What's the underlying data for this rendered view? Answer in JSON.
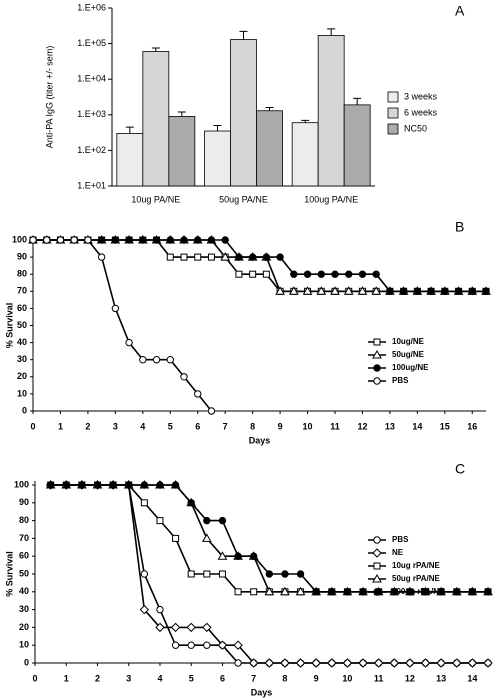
{
  "chart_data": [
    {
      "type": "bar",
      "annotation": "A",
      "y_label": "Anti-PA IgG (titer +/- sem)",
      "log_y": true,
      "categories": [
        "10ug PA/NE",
        "50ug PA/NE",
        "100ug PA/NE"
      ],
      "series": [
        {
          "name": "3 weeks",
          "color": "#ececec",
          "values": [
            300,
            350,
            600
          ],
          "errors": [
            150,
            150,
            100
          ]
        },
        {
          "name": "6 weeks",
          "color": "#d6d6d6",
          "values": [
            60000,
            130000,
            170000
          ],
          "errors": [
            15000,
            90000,
            90000
          ]
        },
        {
          "name": "NC50",
          "color": "#ababab",
          "values": [
            900,
            1300,
            1900
          ],
          "errors": [
            300,
            300,
            1000
          ]
        }
      ],
      "ylim": [
        10,
        1000000
      ],
      "yticks": [
        {
          "value": 10,
          "label": "1.E+01"
        },
        {
          "value": 100,
          "label": "1.E+02"
        },
        {
          "value": 1000,
          "label": "1.E+03"
        },
        {
          "value": 10000,
          "label": "1.E+04"
        },
        {
          "value": 100000,
          "label": "1.E+05"
        },
        {
          "value": 1000000,
          "label": "1.E+06"
        }
      ]
    },
    {
      "type": "line",
      "annotation": "B",
      "x_label": "Days",
      "y_label": "% Survival",
      "x": [
        0,
        0.5,
        1,
        1.5,
        2,
        2.5,
        3,
        3.5,
        4,
        4.5,
        5,
        5.5,
        6,
        6.5,
        7,
        7.5,
        8,
        8.5,
        9,
        9.5,
        10,
        10.5,
        11,
        11.5,
        12,
        12.5,
        13,
        13.5,
        14,
        14.5,
        15,
        15.5,
        16,
        16.5
      ],
      "series": [
        {
          "name": "10ug/NE",
          "color": "#000000",
          "marker": "square",
          "filled": false,
          "values": [
            100,
            100,
            100,
            100,
            100,
            100,
            100,
            100,
            100,
            100,
            90,
            90,
            90,
            90,
            90,
            80,
            80,
            80,
            70,
            70,
            70,
            70,
            70,
            70,
            70,
            70,
            70,
            70,
            70,
            70,
            70,
            70,
            70,
            70
          ]
        },
        {
          "name": "50ug/NE",
          "color": "#000000",
          "marker": "triangle",
          "filled": false,
          "values": [
            100,
            100,
            100,
            100,
            100,
            100,
            100,
            100,
            100,
            100,
            100,
            100,
            100,
            100,
            90,
            90,
            90,
            90,
            70,
            70,
            70,
            70,
            70,
            70,
            70,
            70,
            70,
            70,
            70,
            70,
            70,
            70,
            70,
            70
          ]
        },
        {
          "name": "100ug/NE",
          "color": "#000000",
          "marker": "circle",
          "filled": true,
          "values": [
            100,
            100,
            100,
            100,
            100,
            100,
            100,
            100,
            100,
            100,
            100,
            100,
            100,
            100,
            100,
            90,
            90,
            90,
            90,
            80,
            80,
            80,
            80,
            80,
            80,
            80,
            70,
            70,
            70,
            70,
            70,
            70,
            70,
            70
          ]
        },
        {
          "name": "PBS",
          "color": "#000000",
          "marker": "circle",
          "filled": false,
          "values": [
            100,
            100,
            100,
            100,
            100,
            90,
            60,
            40,
            30,
            30,
            30,
            20,
            10,
            0,
            null,
            null,
            null,
            null,
            null,
            null,
            null,
            null,
            null,
            null,
            null,
            null,
            null,
            null,
            null,
            null,
            null,
            null,
            null,
            null
          ]
        }
      ],
      "xlim": [
        0,
        16.5
      ],
      "xticks": [
        0,
        1,
        2,
        3,
        4,
        5,
        6,
        7,
        8,
        9,
        10,
        11,
        12,
        13,
        14,
        15,
        16
      ],
      "ylim": [
        0,
        100
      ],
      "yticks": [
        0,
        10,
        20,
        30,
        40,
        50,
        60,
        70,
        80,
        90,
        100
      ]
    },
    {
      "type": "line",
      "annotation": "C",
      "x_label": "Days",
      "y_label": "% Survival",
      "x": [
        0.5,
        1,
        1.5,
        2,
        2.5,
        3,
        3.5,
        4,
        4.5,
        5,
        5.5,
        6,
        6.5,
        7,
        7.5,
        8,
        8.5,
        9,
        9.5,
        10,
        10.5,
        11,
        11.5,
        12,
        12.5,
        13,
        13.5,
        14,
        14.5
      ],
      "series": [
        {
          "name": "PBS",
          "color": "#000000",
          "marker": "circle",
          "filled": false,
          "values": [
            100,
            100,
            100,
            100,
            100,
            100,
            50,
            30,
            10,
            10,
            10,
            10,
            0,
            0,
            0,
            0,
            0,
            0,
            0,
            0,
            0,
            0,
            0,
            0,
            0,
            0,
            0,
            0,
            0
          ]
        },
        {
          "name": "NE",
          "color": "#000000",
          "marker": "diamond",
          "filled": false,
          "values": [
            100,
            100,
            100,
            100,
            100,
            100,
            30,
            20,
            20,
            20,
            20,
            10,
            10,
            0,
            0,
            0,
            0,
            0,
            0,
            0,
            0,
            0,
            0,
            0,
            0,
            0,
            0,
            0,
            0
          ]
        },
        {
          "name": "10ug rPA/NE",
          "color": "#000000",
          "marker": "square",
          "filled": false,
          "values": [
            100,
            100,
            100,
            100,
            100,
            100,
            90,
            80,
            70,
            50,
            50,
            50,
            40,
            40,
            40,
            40,
            40,
            40,
            40,
            40,
            40,
            40,
            40,
            40,
            40,
            40,
            40,
            40,
            40
          ]
        },
        {
          "name": "50ug rPA/NE",
          "color": "#000000",
          "marker": "triangle",
          "filled": false,
          "values": [
            100,
            100,
            100,
            100,
            100,
            100,
            100,
            100,
            100,
            90,
            70,
            60,
            60,
            60,
            40,
            40,
            40,
            40,
            40,
            40,
            40,
            40,
            40,
            40,
            40,
            40,
            40,
            40,
            40
          ]
        },
        {
          "name": "100ug rPA/NE",
          "color": "#000000",
          "marker": "circle",
          "filled": true,
          "values": [
            100,
            100,
            100,
            100,
            100,
            100,
            100,
            100,
            100,
            90,
            80,
            80,
            60,
            60,
            50,
            50,
            50,
            40,
            40,
            40,
            40,
            40,
            40,
            40,
            40,
            40,
            40,
            40,
            40
          ]
        }
      ],
      "xlim": [
        0,
        14.5
      ],
      "xticks": [
        0,
        1,
        2,
        3,
        4,
        5,
        6,
        7,
        8,
        9,
        10,
        11,
        12,
        13,
        14
      ],
      "ylim": [
        0,
        100
      ],
      "yticks": [
        0,
        10,
        20,
        30,
        40,
        50,
        60,
        70,
        80,
        90,
        100
      ]
    }
  ]
}
